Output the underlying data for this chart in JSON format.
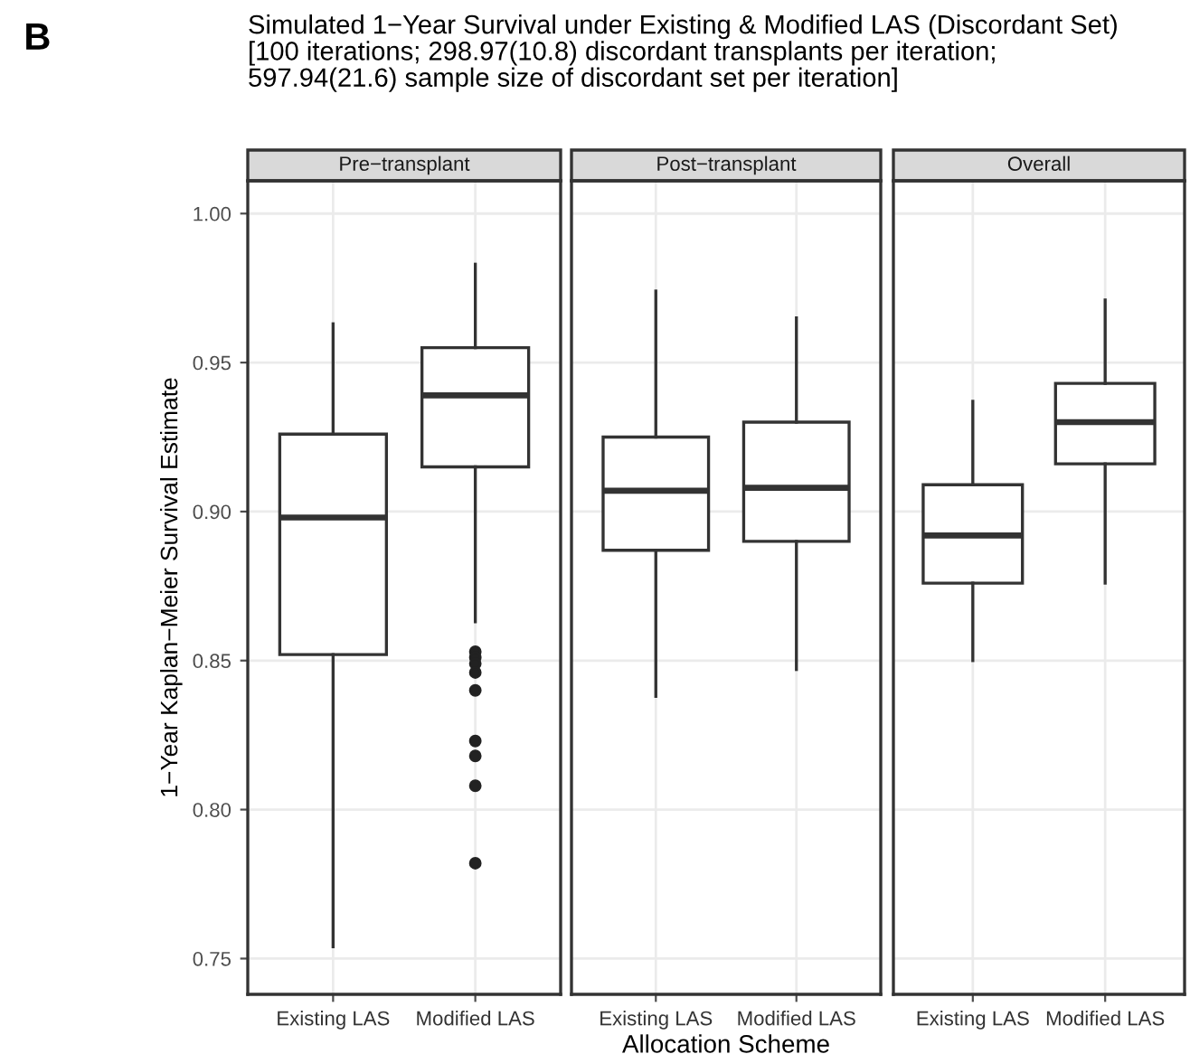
{
  "chart_data": [
    {
      "type": "box",
      "title": "Pre−transplant",
      "ylabel": "1−Year Kaplan−Meier Survival Estimate",
      "annotations": [
        "B",
        "Simulated 1−Year Survival under Existing & Modified LAS (Discordant Set)\n[100 iterations; 298.97(10.8) discordant transplants per iteration;\n597.94(21.6) sample size of discordant set per iteration]"
      ],
      "categories": [
        "Existing LAS",
        "Modified LAS"
      ],
      "boxes": [
        {
          "low": 0.754,
          "q1": 0.852,
          "median": 0.898,
          "q3": 0.926,
          "high": 0.963
        },
        {
          "low": 0.863,
          "q1": 0.915,
          "median": 0.939,
          "q3": 0.955,
          "high": 0.983,
          "outliers": [
            0.853,
            0.851,
            0.849,
            0.846,
            0.84,
            0.823,
            0.818,
            0.808,
            0.782
          ]
        }
      ],
      "ylim": [
        0.738,
        1.011
      ],
      "yticks": [
        {
          "value": 0.75,
          "label": "0.75"
        },
        {
          "value": 0.8,
          "label": "0.80"
        },
        {
          "value": 0.85,
          "label": "0.85"
        },
        {
          "value": 0.9,
          "label": "0.90"
        },
        {
          "value": 0.95,
          "label": "0.95"
        },
        {
          "value": 1.0,
          "label": "1.00"
        }
      ],
      "grid": true
    },
    {
      "type": "box",
      "title": "Post−transplant",
      "xlabel": "Allocation Scheme",
      "categories": [
        "Existing LAS",
        "Modified LAS"
      ],
      "boxes": [
        {
          "low": 0.838,
          "q1": 0.887,
          "median": 0.907,
          "q3": 0.925,
          "high": 0.974
        },
        {
          "low": 0.847,
          "q1": 0.89,
          "median": 0.908,
          "q3": 0.93,
          "high": 0.965
        }
      ],
      "ylim": [
        0.738,
        1.011
      ],
      "yticks": [
        {
          "value": 0.75,
          "label": null
        },
        {
          "value": 0.8,
          "label": null
        },
        {
          "value": 0.85,
          "label": null
        },
        {
          "value": 0.9,
          "label": null
        },
        {
          "value": 0.95,
          "label": null
        },
        {
          "value": 1.0,
          "label": null
        }
      ],
      "grid": true,
      "tick_labels": "x"
    },
    {
      "type": "box",
      "title": "Overall",
      "categories": [
        "Existing LAS",
        "Modified LAS"
      ],
      "boxes": [
        {
          "low": 0.85,
          "q1": 0.876,
          "median": 0.892,
          "q3": 0.909,
          "high": 0.937
        },
        {
          "low": 0.876,
          "q1": 0.916,
          "median": 0.93,
          "q3": 0.943,
          "high": 0.971
        }
      ],
      "ylim": [
        0.738,
        1.011
      ],
      "yticks": [
        {
          "value": 0.75,
          "label": null
        },
        {
          "value": 0.8,
          "label": null
        },
        {
          "value": 0.85,
          "label": null
        },
        {
          "value": 0.9,
          "label": null
        },
        {
          "value": 0.95,
          "label": null
        },
        {
          "value": 1.0,
          "label": null
        }
      ],
      "grid": true,
      "tick_labels": "x"
    }
  ]
}
